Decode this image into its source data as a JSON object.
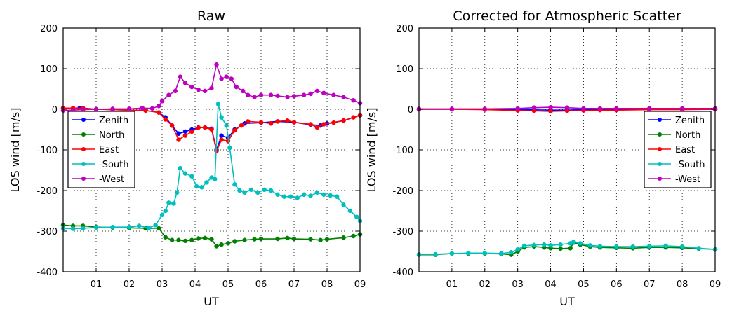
{
  "chart_data": [
    {
      "type": "line",
      "title": "Raw",
      "xlabel": "UT",
      "ylabel": "LOS wind [m/s]",
      "xlim": [
        0,
        9
      ],
      "ylim": [
        -400,
        200
      ],
      "xticks": [
        "01",
        "02",
        "03",
        "04",
        "05",
        "06",
        "07",
        "08",
        "09"
      ],
      "yticks": [
        "-400",
        "-300",
        "-200",
        "-100",
        "0",
        "100",
        "200"
      ],
      "grid": true,
      "legend_position": "center-left",
      "series": [
        {
          "name": "Zenith",
          "color": "#0000ff",
          "points": [
            [
              0.0,
              3
            ],
            [
              0.5,
              3
            ],
            [
              1.0,
              0
            ],
            [
              1.5,
              -1
            ],
            [
              2.0,
              -2
            ],
            [
              2.5,
              -3
            ],
            [
              2.9,
              -8
            ],
            [
              3.1,
              -20
            ],
            [
              3.3,
              -40
            ],
            [
              3.5,
              -60
            ],
            [
              3.7,
              -55
            ],
            [
              3.9,
              -50
            ],
            [
              4.1,
              -45
            ],
            [
              4.3,
              -45
            ],
            [
              4.5,
              -48
            ],
            [
              4.65,
              -100
            ],
            [
              4.8,
              -65
            ],
            [
              5.0,
              -70
            ],
            [
              5.2,
              -50
            ],
            [
              5.5,
              -35
            ],
            [
              6.0,
              -33
            ],
            [
              6.5,
              -30
            ],
            [
              7.0,
              -32
            ],
            [
              7.5,
              -38
            ],
            [
              7.8,
              -40
            ],
            [
              8.0,
              -35
            ],
            [
              8.5,
              -28
            ],
            [
              9.0,
              -15
            ]
          ]
        },
        {
          "name": "North",
          "color": "#008000",
          "points": [
            [
              0.0,
              -285
            ],
            [
              0.3,
              -287
            ],
            [
              0.6,
              -287
            ],
            [
              1.0,
              -290
            ],
            [
              1.5,
              -291
            ],
            [
              2.0,
              -292
            ],
            [
              2.5,
              -293
            ],
            [
              2.9,
              -293
            ],
            [
              3.1,
              -315
            ],
            [
              3.3,
              -322
            ],
            [
              3.5,
              -322
            ],
            [
              3.7,
              -324
            ],
            [
              3.9,
              -322
            ],
            [
              4.1,
              -318
            ],
            [
              4.3,
              -317
            ],
            [
              4.5,
              -320
            ],
            [
              4.65,
              -337
            ],
            [
              4.8,
              -333
            ],
            [
              5.0,
              -330
            ],
            [
              5.2,
              -325
            ],
            [
              5.5,
              -322
            ],
            [
              5.8,
              -320
            ],
            [
              6.0,
              -319
            ],
            [
              6.5,
              -319
            ],
            [
              6.8,
              -317
            ],
            [
              7.0,
              -319
            ],
            [
              7.5,
              -320
            ],
            [
              7.8,
              -322
            ],
            [
              8.0,
              -320
            ],
            [
              8.5,
              -316
            ],
            [
              8.8,
              -312
            ],
            [
              9.0,
              -308
            ]
          ]
        },
        {
          "name": "East",
          "color": "#ff0000",
          "points": [
            [
              0.0,
              3
            ],
            [
              0.3,
              3
            ],
            [
              0.6,
              3
            ],
            [
              1.0,
              0
            ],
            [
              1.5,
              -1
            ],
            [
              2.0,
              -2
            ],
            [
              2.5,
              -3
            ],
            [
              2.9,
              -8
            ],
            [
              3.1,
              -25
            ],
            [
              3.3,
              -40
            ],
            [
              3.5,
              -75
            ],
            [
              3.7,
              -65
            ],
            [
              3.9,
              -55
            ],
            [
              4.1,
              -45
            ],
            [
              4.3,
              -45
            ],
            [
              4.5,
              -50
            ],
            [
              4.65,
              -103
            ],
            [
              4.8,
              -75
            ],
            [
              5.0,
              -78
            ],
            [
              5.2,
              -52
            ],
            [
              5.4,
              -40
            ],
            [
              5.6,
              -30
            ],
            [
              6.0,
              -32
            ],
            [
              6.3,
              -35
            ],
            [
              6.5,
              -30
            ],
            [
              6.8,
              -28
            ],
            [
              7.0,
              -32
            ],
            [
              7.5,
              -37
            ],
            [
              7.7,
              -45
            ],
            [
              7.9,
              -37
            ],
            [
              8.2,
              -33
            ],
            [
              8.5,
              -28
            ],
            [
              8.8,
              -20
            ],
            [
              9.0,
              -15
            ]
          ]
        },
        {
          "name": "-South",
          "color": "#00bfbf",
          "points": [
            [
              0.0,
              -293
            ],
            [
              0.3,
              -294
            ],
            [
              0.6,
              -293
            ],
            [
              1.0,
              -291
            ],
            [
              1.5,
              -290
            ],
            [
              2.0,
              -290
            ],
            [
              2.3,
              -287
            ],
            [
              2.6,
              -292
            ],
            [
              2.8,
              -285
            ],
            [
              3.0,
              -260
            ],
            [
              3.1,
              -250
            ],
            [
              3.2,
              -230
            ],
            [
              3.35,
              -232
            ],
            [
              3.45,
              -205
            ],
            [
              3.55,
              -145
            ],
            [
              3.7,
              -158
            ],
            [
              3.9,
              -165
            ],
            [
              4.05,
              -190
            ],
            [
              4.2,
              -192
            ],
            [
              4.35,
              -180
            ],
            [
              4.5,
              -168
            ],
            [
              4.6,
              -172
            ],
            [
              4.7,
              13
            ],
            [
              4.8,
              -20
            ],
            [
              4.95,
              -40
            ],
            [
              5.05,
              -95
            ],
            [
              5.2,
              -185
            ],
            [
              5.35,
              -200
            ],
            [
              5.5,
              -205
            ],
            [
              5.7,
              -198
            ],
            [
              5.9,
              -205
            ],
            [
              6.1,
              -198
            ],
            [
              6.3,
              -200
            ],
            [
              6.5,
              -210
            ],
            [
              6.7,
              -215
            ],
            [
              6.9,
              -215
            ],
            [
              7.1,
              -218
            ],
            [
              7.3,
              -210
            ],
            [
              7.5,
              -213
            ],
            [
              7.7,
              -205
            ],
            [
              7.9,
              -210
            ],
            [
              8.1,
              -212
            ],
            [
              8.3,
              -215
            ],
            [
              8.5,
              -235
            ],
            [
              8.7,
              -250
            ],
            [
              8.9,
              -265
            ],
            [
              9.0,
              -275
            ]
          ]
        },
        {
          "name": "-West",
          "color": "#bf00bf",
          "points": [
            [
              0.0,
              -3
            ],
            [
              0.3,
              -2
            ],
            [
              0.6,
              -1
            ],
            [
              1.0,
              0
            ],
            [
              1.5,
              1
            ],
            [
              2.0,
              1
            ],
            [
              2.4,
              3
            ],
            [
              2.7,
              2
            ],
            [
              2.9,
              8
            ],
            [
              3.0,
              20
            ],
            [
              3.2,
              35
            ],
            [
              3.4,
              45
            ],
            [
              3.55,
              80
            ],
            [
              3.7,
              65
            ],
            [
              3.9,
              55
            ],
            [
              4.1,
              48
            ],
            [
              4.3,
              45
            ],
            [
              4.5,
              52
            ],
            [
              4.65,
              110
            ],
            [
              4.8,
              75
            ],
            [
              4.95,
              80
            ],
            [
              5.1,
              75
            ],
            [
              5.25,
              55
            ],
            [
              5.45,
              45
            ],
            [
              5.6,
              35
            ],
            [
              5.8,
              30
            ],
            [
              6.0,
              35
            ],
            [
              6.3,
              35
            ],
            [
              6.5,
              33
            ],
            [
              6.8,
              30
            ],
            [
              7.0,
              32
            ],
            [
              7.3,
              35
            ],
            [
              7.5,
              38
            ],
            [
              7.7,
              45
            ],
            [
              7.9,
              40
            ],
            [
              8.2,
              35
            ],
            [
              8.5,
              30
            ],
            [
              8.8,
              22
            ],
            [
              9.0,
              15
            ]
          ]
        }
      ]
    },
    {
      "type": "line",
      "title": "Corrected for Atmospheric Scatter",
      "xlabel": "UT",
      "ylabel": "LOS wind [m/s]",
      "xlim": [
        0,
        9
      ],
      "ylim": [
        -400,
        200
      ],
      "xticks": [
        "01",
        "02",
        "03",
        "04",
        "05",
        "06",
        "07",
        "08",
        "09"
      ],
      "yticks": [
        "-400",
        "-300",
        "-200",
        "-100",
        "0",
        "100",
        "200"
      ],
      "grid": true,
      "legend_position": "center-right",
      "series": [
        {
          "name": "Zenith",
          "color": "#0000ff",
          "points": [
            [
              0.0,
              0
            ],
            [
              1.0,
              0
            ],
            [
              2.0,
              0
            ],
            [
              3.0,
              -1
            ],
            [
              4.0,
              -2
            ],
            [
              4.5,
              -2
            ],
            [
              5.0,
              -1
            ],
            [
              6.0,
              0
            ],
            [
              7.0,
              0
            ],
            [
              8.0,
              0
            ],
            [
              9.0,
              0
            ]
          ]
        },
        {
          "name": "North",
          "color": "#008000",
          "points": [
            [
              0.0,
              -358
            ],
            [
              0.5,
              -358
            ],
            [
              1.0,
              -355
            ],
            [
              1.5,
              -355
            ],
            [
              2.0,
              -355
            ],
            [
              2.5,
              -356
            ],
            [
              2.8,
              -358
            ],
            [
              3.0,
              -350
            ],
            [
              3.2,
              -340
            ],
            [
              3.5,
              -338
            ],
            [
              3.8,
              -340
            ],
            [
              4.0,
              -342
            ],
            [
              4.3,
              -343
            ],
            [
              4.6,
              -342
            ],
            [
              4.7,
              -328
            ],
            [
              4.9,
              -333
            ],
            [
              5.2,
              -338
            ],
            [
              5.5,
              -340
            ],
            [
              6.0,
              -341
            ],
            [
              6.5,
              -342
            ],
            [
              7.0,
              -340
            ],
            [
              7.5,
              -340
            ],
            [
              8.0,
              -341
            ],
            [
              8.5,
              -343
            ],
            [
              9.0,
              -345
            ]
          ]
        },
        {
          "name": "East",
          "color": "#ff0000",
          "points": [
            [
              0.0,
              0
            ],
            [
              1.0,
              0
            ],
            [
              2.0,
              -1
            ],
            [
              3.0,
              -3
            ],
            [
              3.5,
              -4
            ],
            [
              4.0,
              -5
            ],
            [
              4.5,
              -4
            ],
            [
              5.0,
              -3
            ],
            [
              5.5,
              -2
            ],
            [
              6.0,
              -2
            ],
            [
              7.0,
              -1
            ],
            [
              8.0,
              -1
            ],
            [
              9.0,
              0
            ]
          ]
        },
        {
          "name": "-South",
          "color": "#00bfbf",
          "points": [
            [
              0.0,
              -357
            ],
            [
              0.5,
              -357
            ],
            [
              1.0,
              -355
            ],
            [
              1.5,
              -354
            ],
            [
              2.0,
              -354
            ],
            [
              2.5,
              -355
            ],
            [
              2.8,
              -352
            ],
            [
              3.0,
              -345
            ],
            [
              3.2,
              -336
            ],
            [
              3.5,
              -334
            ],
            [
              3.8,
              -333
            ],
            [
              4.0,
              -335
            ],
            [
              4.3,
              -333
            ],
            [
              4.6,
              -330
            ],
            [
              4.7,
              -326
            ],
            [
              4.9,
              -330
            ],
            [
              5.2,
              -335
            ],
            [
              5.5,
              -337
            ],
            [
              6.0,
              -338
            ],
            [
              6.5,
              -338
            ],
            [
              7.0,
              -337
            ],
            [
              7.5,
              -336
            ],
            [
              8.0,
              -338
            ],
            [
              8.5,
              -342
            ],
            [
              9.0,
              -345
            ]
          ]
        },
        {
          "name": "-West",
          "color": "#bf00bf",
          "points": [
            [
              0.0,
              1
            ],
            [
              1.0,
              1
            ],
            [
              2.0,
              1
            ],
            [
              3.0,
              2
            ],
            [
              3.5,
              4
            ],
            [
              4.0,
              5
            ],
            [
              4.5,
              4
            ],
            [
              5.0,
              2
            ],
            [
              5.5,
              2
            ],
            [
              6.0,
              2
            ],
            [
              7.0,
              2
            ],
            [
              8.0,
              2
            ],
            [
              9.0,
              2
            ]
          ]
        }
      ]
    }
  ]
}
